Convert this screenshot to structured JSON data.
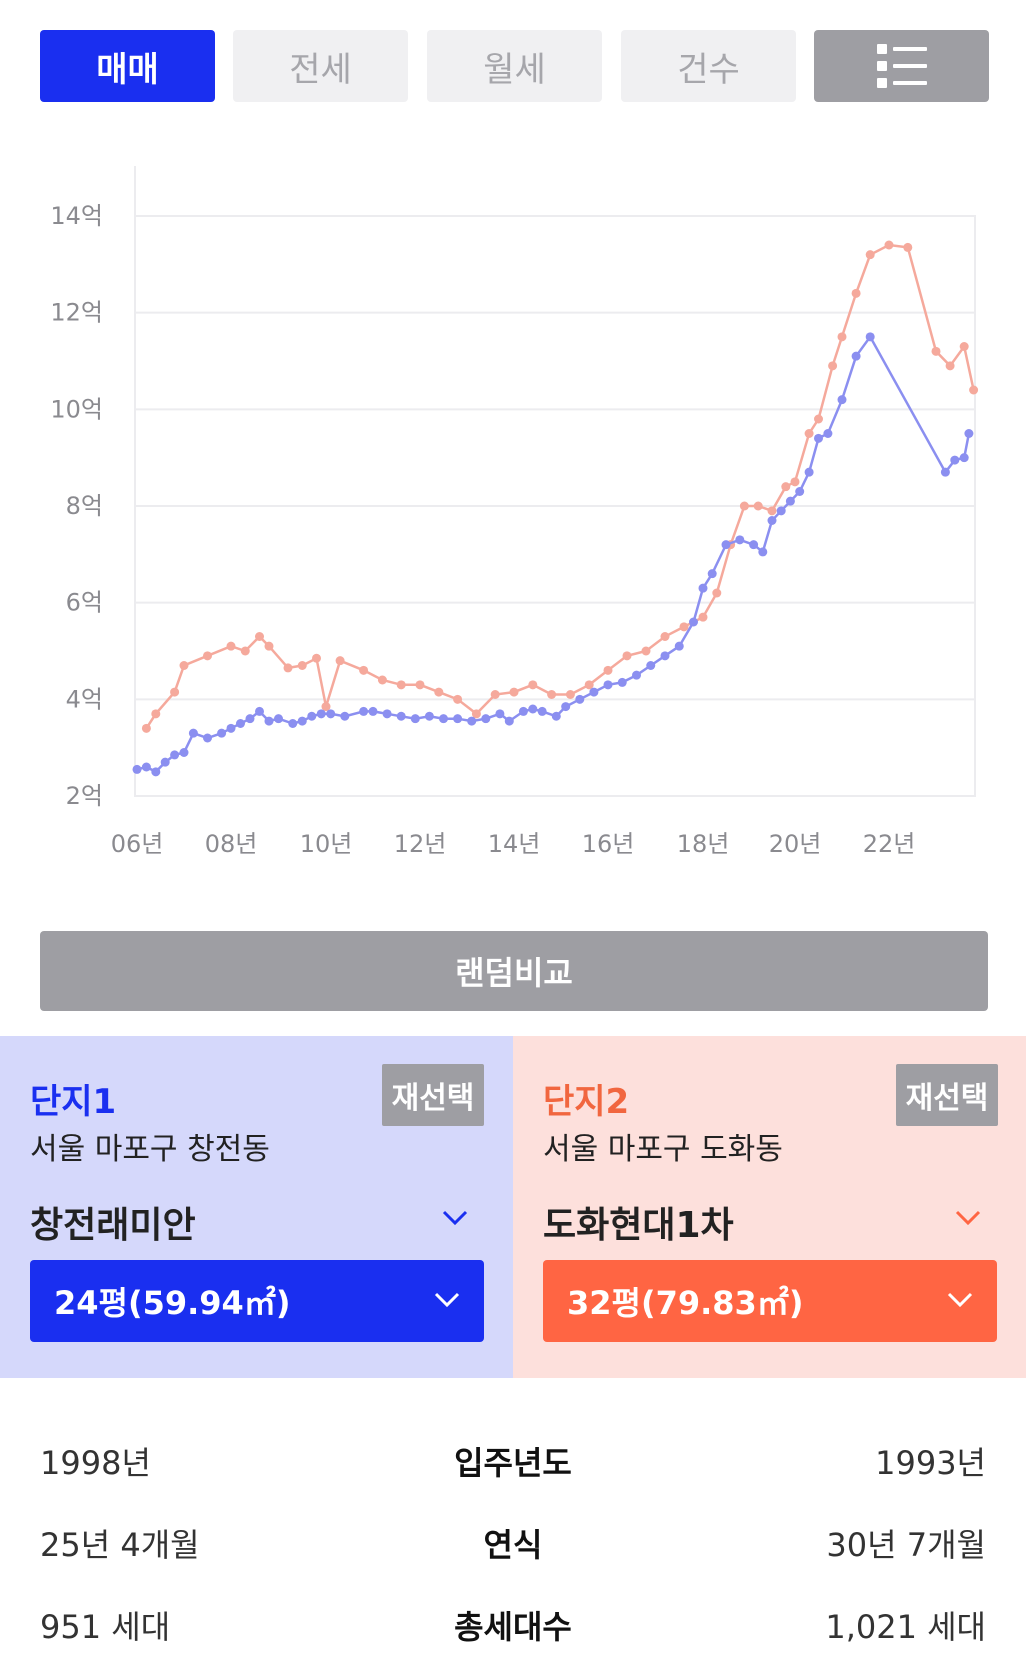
{
  "tabs": [
    {
      "label": "매매",
      "active": true
    },
    {
      "label": "전세",
      "active": false
    },
    {
      "label": "월세",
      "active": false
    },
    {
      "label": "건수",
      "active": false
    }
  ],
  "list_button_icon": "list-icon",
  "chart_data": {
    "type": "line",
    "y_ticks": [
      "2억",
      "4억",
      "6억",
      "8억",
      "10억",
      "12억",
      "14억"
    ],
    "y_tick_values": [
      2,
      4,
      6,
      8,
      10,
      12,
      14
    ],
    "x_ticks": [
      "06년",
      "08년",
      "10년",
      "12년",
      "14년",
      "16년",
      "18년",
      "20년",
      "22년"
    ],
    "x_tick_values": [
      2006,
      2008,
      2010,
      2012,
      2014,
      2016,
      2018,
      2020,
      2022
    ],
    "ylim": [
      2,
      14
    ],
    "grid": true,
    "series": [
      {
        "color": "#8b8ff0",
        "x": [
          2006.0,
          2006.2,
          2006.4,
          2006.6,
          2006.8,
          2007.0,
          2007.2,
          2007.5,
          2007.8,
          2008.0,
          2008.2,
          2008.4,
          2008.6,
          2008.8,
          2009.0,
          2009.3,
          2009.5,
          2009.7,
          2009.9,
          2010.1,
          2010.4,
          2010.8,
          2011.0,
          2011.3,
          2011.6,
          2011.9,
          2012.2,
          2012.5,
          2012.8,
          2013.1,
          2013.4,
          2013.7,
          2013.9,
          2014.2,
          2014.4,
          2014.6,
          2014.9,
          2015.1,
          2015.4,
          2015.7,
          2016.0,
          2016.3,
          2016.6,
          2016.9,
          2017.2,
          2017.5,
          2017.8,
          2018.0,
          2018.2,
          2018.5,
          2018.8,
          2019.1,
          2019.3,
          2019.5,
          2019.7,
          2019.9,
          2020.1,
          2020.3,
          2020.5,
          2020.7,
          2021.0,
          2021.3,
          2021.6,
          2023.2,
          2023.4,
          2023.6,
          2023.7
        ],
        "values": [
          2.55,
          2.6,
          2.5,
          2.7,
          2.85,
          2.9,
          3.3,
          3.2,
          3.3,
          3.4,
          3.5,
          3.6,
          3.75,
          3.55,
          3.6,
          3.5,
          3.55,
          3.65,
          3.7,
          3.7,
          3.65,
          3.75,
          3.75,
          3.7,
          3.65,
          3.6,
          3.65,
          3.6,
          3.6,
          3.55,
          3.6,
          3.7,
          3.55,
          3.75,
          3.8,
          3.75,
          3.65,
          3.85,
          4.0,
          4.15,
          4.3,
          4.35,
          4.5,
          4.7,
          4.9,
          5.1,
          5.6,
          6.3,
          6.6,
          7.2,
          7.3,
          7.2,
          7.05,
          7.7,
          7.9,
          8.1,
          8.3,
          8.7,
          9.4,
          9.5,
          10.2,
          11.1,
          11.5,
          8.7,
          8.95,
          9.0,
          9.5
        ]
      },
      {
        "color": "#f5a99c",
        "x": [
          2006.2,
          2006.4,
          2006.8,
          2007.0,
          2007.5,
          2008.0,
          2008.3,
          2008.6,
          2008.8,
          2009.2,
          2009.5,
          2009.8,
          2010.0,
          2010.3,
          2010.8,
          2011.2,
          2011.6,
          2012.0,
          2012.4,
          2012.8,
          2013.2,
          2013.6,
          2014.0,
          2014.4,
          2014.8,
          2015.2,
          2015.6,
          2016.0,
          2016.4,
          2016.8,
          2017.2,
          2017.6,
          2018.0,
          2018.3,
          2018.6,
          2018.9,
          2019.2,
          2019.5,
          2019.8,
          2020.0,
          2020.3,
          2020.5,
          2020.8,
          2021.0,
          2021.3,
          2021.6,
          2022.0,
          2022.4,
          2023.0,
          2023.3,
          2023.6,
          2023.8
        ],
        "values": [
          3.4,
          3.7,
          4.15,
          4.7,
          4.9,
          5.1,
          5.0,
          5.3,
          5.1,
          4.65,
          4.7,
          4.85,
          3.85,
          4.8,
          4.6,
          4.4,
          4.3,
          4.3,
          4.15,
          4.0,
          3.7,
          4.1,
          4.15,
          4.3,
          4.1,
          4.1,
          4.3,
          4.6,
          4.9,
          5.0,
          5.3,
          5.5,
          5.7,
          6.2,
          7.2,
          8.0,
          8.0,
          7.9,
          8.4,
          8.5,
          9.5,
          9.8,
          10.9,
          11.5,
          12.4,
          13.2,
          13.4,
          13.35,
          11.2,
          10.9,
          11.3,
          10.4
        ]
      }
    ]
  },
  "random_compare_label": "랜덤비교",
  "complex1": {
    "title": "단지1",
    "reselect_label": "재선택",
    "address": "서울 마포구 창전동",
    "name": "창전래미안",
    "size": "24평(59.94㎡)",
    "color": "#1a2ff0"
  },
  "complex2": {
    "title": "단지2",
    "reselect_label": "재선택",
    "address": "서울 마포구 도화동",
    "name": "도화현대1차",
    "size": "32평(79.83㎡)",
    "color": "#ff6543"
  },
  "info_rows": [
    {
      "label": "입주년도",
      "left": "1998년",
      "right": "1993년"
    },
    {
      "label": "연식",
      "left": "25년 4개월",
      "right": "30년 7개월"
    },
    {
      "label": "총세대수",
      "left": "951 세대",
      "right": "1,021 세대"
    }
  ]
}
